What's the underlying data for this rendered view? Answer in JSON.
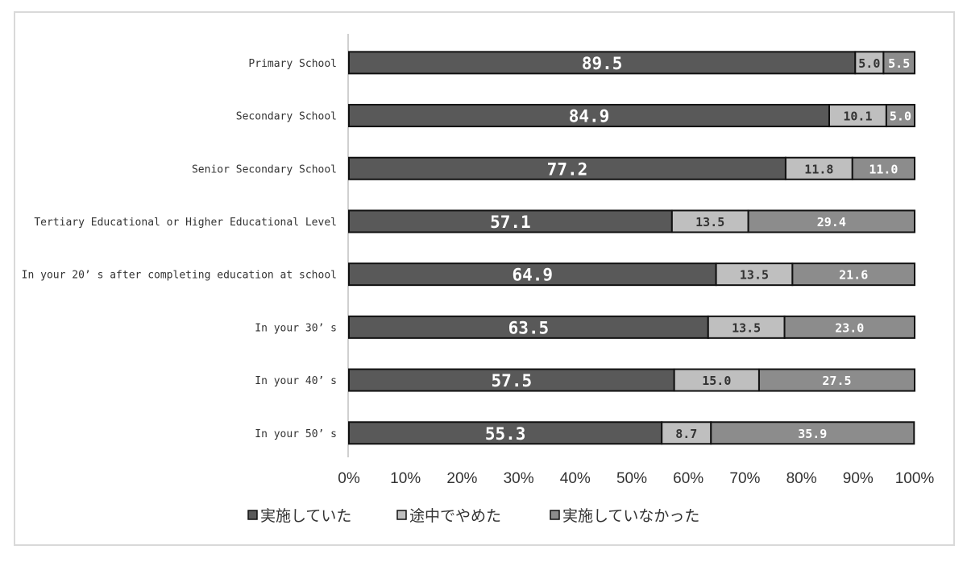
{
  "chart_data": {
    "type": "bar",
    "orientation": "horizontal",
    "stacked": "percent",
    "categories": [
      "Primary School",
      "Secondary School",
      "Senior Secondary School",
      "Tertiary Educational or Higher Educational Level",
      "In your 20’ s after completing education at school",
      "In your 30’ s",
      "In your 40’ s",
      "In your 50’ s"
    ],
    "series": [
      {
        "name": "実施していた",
        "color": "#595959",
        "values": [
          89.5,
          84.9,
          77.2,
          57.1,
          64.9,
          63.5,
          57.5,
          55.3
        ],
        "labels": [
          "89.5",
          "84.9",
          "77.2",
          "57.1",
          "64.9",
          "63.5",
          "57.5",
          "55.3"
        ]
      },
      {
        "name": "途中でやめた",
        "color": "#bfbfbf",
        "values": [
          5.0,
          10.1,
          11.8,
          13.5,
          13.5,
          13.5,
          15.0,
          8.7
        ],
        "labels": [
          "5.0",
          "10.1",
          "11.8",
          "13.5",
          "13.5",
          "13.5",
          "15.0",
          "8.7"
        ]
      },
      {
        "name": "実施していなかった",
        "color": "#8c8c8c",
        "values": [
          5.5,
          5.0,
          11.0,
          29.4,
          21.6,
          23.0,
          27.5,
          35.9
        ],
        "labels": [
          "5.5",
          "5.0",
          "11.0",
          "29.4",
          "21.6",
          "23.0",
          "27.5",
          "35.9"
        ]
      }
    ],
    "xlim": [
      0,
      100
    ],
    "x_ticks": [
      "0%",
      "10%",
      "20%",
      "30%",
      "40%",
      "50%",
      "60%",
      "70%",
      "80%",
      "90%",
      "100%"
    ],
    "grid": false,
    "legend_position": "bottom",
    "title": "",
    "xlabel": "",
    "ylabel": ""
  }
}
